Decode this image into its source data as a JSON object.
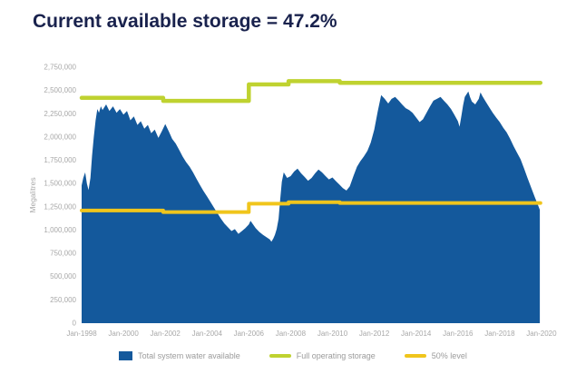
{
  "title": "Current available storage = 47.2%",
  "colors": {
    "title": "#19224d",
    "area": "#14599c",
    "full_storage": "#bfd230",
    "half_level": "#f0c51c",
    "axis_text": "#a8a8a8",
    "legend_text": "#9b9b9b"
  },
  "legend": {
    "items": [
      {
        "label": "Total system water available",
        "type": "area",
        "color": "#14599c"
      },
      {
        "label": "Full operating storage",
        "type": "line",
        "color": "#bfd230"
      },
      {
        "label": "50% level",
        "type": "line",
        "color": "#f0c51c"
      }
    ]
  },
  "chart_data": {
    "type": "area",
    "title": "Current available storage = 47.2%",
    "xlabel": "",
    "ylabel": "Megalitres",
    "x_range": [
      1998,
      2020.35
    ],
    "ylim": [
      0,
      2750000
    ],
    "grid": false,
    "legend_position": "bottom",
    "y_ticks": [
      0,
      250000,
      500000,
      750000,
      1000000,
      1250000,
      1500000,
      1750000,
      2000000,
      2250000,
      2500000,
      2750000
    ],
    "y_tick_labels": [
      "0",
      "250,000",
      "500,000",
      "750,000",
      "1,000,000",
      "1,250,000",
      "1,500,000",
      "1,750,000",
      "2,000,000",
      "2,250,000",
      "2,500,000",
      "2,750,000"
    ],
    "x_ticks": [
      1998,
      2000,
      2002,
      2004,
      2006,
      2008,
      2010,
      2012,
      2014,
      2016,
      2018,
      2020
    ],
    "x_tick_labels": [
      "Jan-1998",
      "Jan-2000",
      "Jan-2002",
      "Jan-2004",
      "Jan-2006",
      "Jan-2008",
      "Jan-2010",
      "Jan-2012",
      "Jan-2014",
      "Jan-2016",
      "Jan-2018",
      "Jan-2020"
    ],
    "series": [
      {
        "name": "Total system water available",
        "type": "area",
        "color": "#14599c",
        "points": [
          [
            1998.0,
            1480000
          ],
          [
            1998.08,
            1560000
          ],
          [
            1998.17,
            1620000
          ],
          [
            1998.25,
            1500000
          ],
          [
            1998.33,
            1430000
          ],
          [
            1998.42,
            1560000
          ],
          [
            1998.5,
            1800000
          ],
          [
            1998.58,
            2000000
          ],
          [
            1998.67,
            2180000
          ],
          [
            1998.75,
            2300000
          ],
          [
            1998.83,
            2260000
          ],
          [
            1998.92,
            2330000
          ],
          [
            1999.0,
            2290000
          ],
          [
            1999.17,
            2350000
          ],
          [
            1999.33,
            2280000
          ],
          [
            1999.5,
            2330000
          ],
          [
            1999.67,
            2260000
          ],
          [
            1999.83,
            2300000
          ],
          [
            2000.0,
            2240000
          ],
          [
            2000.17,
            2280000
          ],
          [
            2000.33,
            2180000
          ],
          [
            2000.5,
            2220000
          ],
          [
            2000.67,
            2130000
          ],
          [
            2000.83,
            2170000
          ],
          [
            2001.0,
            2090000
          ],
          [
            2001.17,
            2130000
          ],
          [
            2001.33,
            2040000
          ],
          [
            2001.5,
            2080000
          ],
          [
            2001.67,
            1990000
          ],
          [
            2001.83,
            2060000
          ],
          [
            2002.0,
            2140000
          ],
          [
            2002.17,
            2060000
          ],
          [
            2002.33,
            1980000
          ],
          [
            2002.5,
            1930000
          ],
          [
            2002.67,
            1860000
          ],
          [
            2002.83,
            1790000
          ],
          [
            2003.0,
            1730000
          ],
          [
            2003.17,
            1680000
          ],
          [
            2003.33,
            1620000
          ],
          [
            2003.5,
            1550000
          ],
          [
            2003.67,
            1480000
          ],
          [
            2003.83,
            1420000
          ],
          [
            2004.0,
            1360000
          ],
          [
            2004.17,
            1300000
          ],
          [
            2004.33,
            1240000
          ],
          [
            2004.5,
            1180000
          ],
          [
            2004.67,
            1120000
          ],
          [
            2004.83,
            1070000
          ],
          [
            2005.0,
            1030000
          ],
          [
            2005.17,
            990000
          ],
          [
            2005.33,
            1010000
          ],
          [
            2005.5,
            960000
          ],
          [
            2005.67,
            990000
          ],
          [
            2005.83,
            1020000
          ],
          [
            2006.0,
            1060000
          ],
          [
            2006.08,
            1100000
          ],
          [
            2006.17,
            1070000
          ],
          [
            2006.33,
            1020000
          ],
          [
            2006.5,
            980000
          ],
          [
            2006.67,
            950000
          ],
          [
            2006.83,
            925000
          ],
          [
            2007.0,
            900000
          ],
          [
            2007.08,
            875000
          ],
          [
            2007.17,
            910000
          ],
          [
            2007.25,
            950000
          ],
          [
            2007.33,
            1010000
          ],
          [
            2007.42,
            1120000
          ],
          [
            2007.5,
            1330000
          ],
          [
            2007.58,
            1520000
          ],
          [
            2007.67,
            1620000
          ],
          [
            2007.75,
            1590000
          ],
          [
            2007.83,
            1560000
          ],
          [
            2008.0,
            1580000
          ],
          [
            2008.17,
            1630000
          ],
          [
            2008.33,
            1660000
          ],
          [
            2008.5,
            1610000
          ],
          [
            2008.67,
            1570000
          ],
          [
            2008.83,
            1530000
          ],
          [
            2009.0,
            1560000
          ],
          [
            2009.17,
            1610000
          ],
          [
            2009.33,
            1650000
          ],
          [
            2009.5,
            1620000
          ],
          [
            2009.67,
            1580000
          ],
          [
            2009.83,
            1545000
          ],
          [
            2010.0,
            1565000
          ],
          [
            2010.17,
            1525000
          ],
          [
            2010.33,
            1490000
          ],
          [
            2010.5,
            1450000
          ],
          [
            2010.67,
            1425000
          ],
          [
            2010.83,
            1470000
          ],
          [
            2011.0,
            1580000
          ],
          [
            2011.17,
            1680000
          ],
          [
            2011.33,
            1740000
          ],
          [
            2011.5,
            1790000
          ],
          [
            2011.67,
            1850000
          ],
          [
            2011.83,
            1940000
          ],
          [
            2012.0,
            2080000
          ],
          [
            2012.17,
            2280000
          ],
          [
            2012.33,
            2450000
          ],
          [
            2012.5,
            2410000
          ],
          [
            2012.67,
            2360000
          ],
          [
            2012.83,
            2410000
          ],
          [
            2013.0,
            2430000
          ],
          [
            2013.17,
            2390000
          ],
          [
            2013.33,
            2350000
          ],
          [
            2013.5,
            2310000
          ],
          [
            2013.67,
            2290000
          ],
          [
            2013.83,
            2260000
          ],
          [
            2014.0,
            2210000
          ],
          [
            2014.17,
            2160000
          ],
          [
            2014.33,
            2190000
          ],
          [
            2014.5,
            2260000
          ],
          [
            2014.67,
            2330000
          ],
          [
            2014.83,
            2390000
          ],
          [
            2015.0,
            2410000
          ],
          [
            2015.17,
            2430000
          ],
          [
            2015.33,
            2390000
          ],
          [
            2015.5,
            2350000
          ],
          [
            2015.67,
            2300000
          ],
          [
            2015.83,
            2240000
          ],
          [
            2016.0,
            2170000
          ],
          [
            2016.08,
            2110000
          ],
          [
            2016.17,
            2230000
          ],
          [
            2016.25,
            2340000
          ],
          [
            2016.33,
            2430000
          ],
          [
            2016.5,
            2490000
          ],
          [
            2016.58,
            2430000
          ],
          [
            2016.67,
            2380000
          ],
          [
            2016.83,
            2350000
          ],
          [
            2017.0,
            2410000
          ],
          [
            2017.08,
            2480000
          ],
          [
            2017.17,
            2440000
          ],
          [
            2017.33,
            2380000
          ],
          [
            2017.5,
            2320000
          ],
          [
            2017.67,
            2260000
          ],
          [
            2017.83,
            2210000
          ],
          [
            2018.0,
            2160000
          ],
          [
            2018.17,
            2100000
          ],
          [
            2018.33,
            2050000
          ],
          [
            2018.5,
            1980000
          ],
          [
            2018.67,
            1900000
          ],
          [
            2018.83,
            1830000
          ],
          [
            2019.0,
            1760000
          ],
          [
            2019.17,
            1660000
          ],
          [
            2019.33,
            1560000
          ],
          [
            2019.5,
            1460000
          ],
          [
            2019.67,
            1360000
          ],
          [
            2019.83,
            1270000
          ],
          [
            2019.92,
            1218000
          ]
        ]
      },
      {
        "name": "Full operating storage",
        "type": "line",
        "color": "#bfd230",
        "width": 4.5,
        "points": [
          [
            1998.0,
            2420000
          ],
          [
            2001.9,
            2420000
          ],
          [
            2001.9,
            2388000
          ],
          [
            2006.0,
            2388000
          ],
          [
            2006.0,
            2565000
          ],
          [
            2007.9,
            2565000
          ],
          [
            2007.9,
            2600000
          ],
          [
            2010.35,
            2600000
          ],
          [
            2010.35,
            2582000
          ],
          [
            2019.95,
            2582000
          ]
        ]
      },
      {
        "name": "50% level",
        "type": "line",
        "color": "#f0c51c",
        "width": 4,
        "points": [
          [
            1998.0,
            1210000
          ],
          [
            2001.9,
            1210000
          ],
          [
            2001.9,
            1194000
          ],
          [
            2006.0,
            1194000
          ],
          [
            2006.0,
            1283000
          ],
          [
            2007.9,
            1283000
          ],
          [
            2007.9,
            1300000
          ],
          [
            2010.35,
            1300000
          ],
          [
            2010.35,
            1291000
          ],
          [
            2019.95,
            1291000
          ]
        ]
      }
    ]
  }
}
